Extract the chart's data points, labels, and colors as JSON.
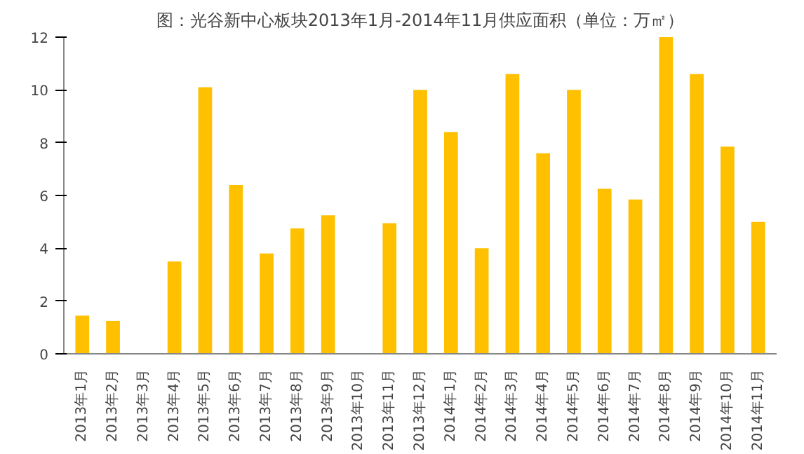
{
  "chart_data": {
    "type": "bar",
    "title": "图：光谷新中心板块2013年1月-2014年11月供应面积（单位：万㎡）",
    "categories": [
      "2013年1月",
      "2013年2月",
      "2013年3月",
      "2013年4月",
      "2013年5月",
      "2013年6月",
      "2013年7月",
      "2013年8月",
      "2013年9月",
      "2013年10月",
      "2013年11月",
      "2013年12月",
      "2014年1月",
      "2014年2月",
      "2014年3月",
      "2014年4月",
      "2014年5月",
      "2014年6月",
      "2014年7月",
      "2014年8月",
      "2014年9月",
      "2014年10月",
      "2014年11月"
    ],
    "values": [
      1.45,
      1.25,
      0,
      3.5,
      10.1,
      6.4,
      3.8,
      4.75,
      5.25,
      0,
      4.95,
      10.0,
      8.4,
      4.0,
      10.6,
      7.6,
      10.0,
      6.25,
      5.85,
      12.0,
      10.6,
      7.85,
      5.0
    ],
    "color": "#ffc000",
    "ylim": [
      0,
      12
    ],
    "yticks": [
      0,
      2,
      4,
      6,
      8,
      10,
      12
    ],
    "grid": false
  }
}
